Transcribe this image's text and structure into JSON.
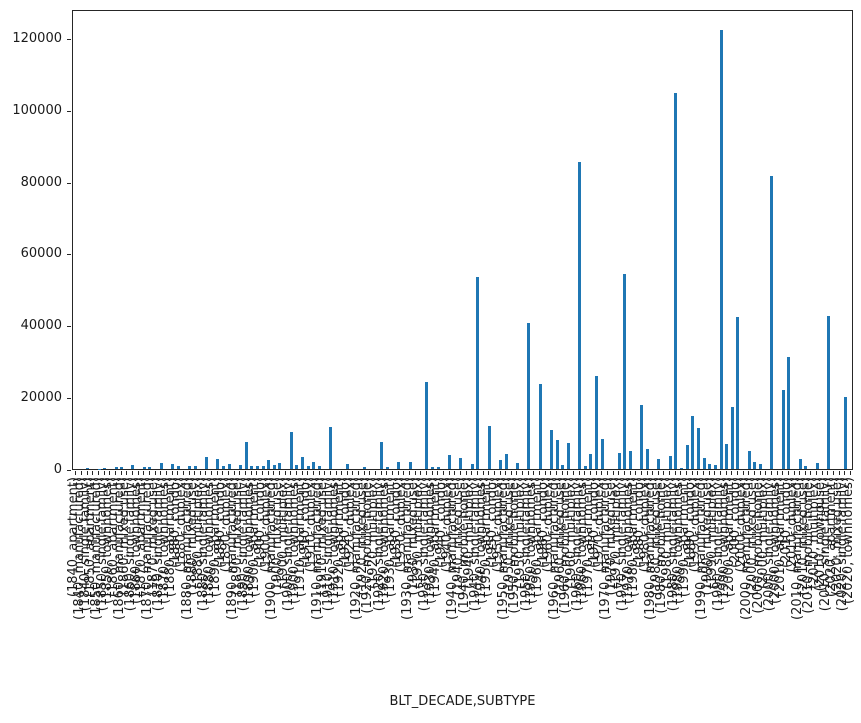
{
  "chart_data": {
    "type": "bar",
    "title": "",
    "xlabel": "BLT_DECADE,SUBTYPE",
    "ylabel": "",
    "ylim": [
      0,
      128000
    ],
    "yticks": [
      0,
      20000,
      40000,
      60000,
      80000,
      100000,
      120000
    ],
    "grid": false,
    "legend": "none",
    "bar_color": "#1f77b4",
    "background_color": "#ffffff",
    "categories": [
      "(1840, apartment)",
      "(1840, manufactured)",
      "(1840, single family)",
      "(1850, apartment)",
      "(1850, manufactured)",
      "(1850, single family)",
      "(1850, townhomes)",
      "(1860, apartment)",
      "(1860, manufactured)",
      "(1860, mixed use)",
      "(1860, single family)",
      "(1860, townhomes)",
      "(1870, apartment)",
      "(1870, manufactured)",
      "(1870, mixed use)",
      "(1870, single family)",
      "(1870, townhomes)",
      "(1880, apartment)",
      "(1880, condo)",
      "(1880, duplex)",
      "(1880, manufactured)",
      "(1880, mixed use)",
      "(1880, multiplex)",
      "(1880, single family)",
      "(1880, townhomes)",
      "(1890, apartment)",
      "(1890, condo)",
      "(1890, duplex)",
      "(1890, manufactured)",
      "(1890, mixed use)",
      "(1890, single family)",
      "(1890, townhomes)",
      "(1900, apartment)",
      "(1900, condo)",
      "(1900, duplex)",
      "(1900, manufactured)",
      "(1900, mixed use)",
      "(1900, multiplex)",
      "(1900, single family)",
      "(1900, townhomes)",
      "(1910, apartment)",
      "(1910, condo)",
      "(1910, duplex)",
      "(1910, manufactured)",
      "(1910, mixed use)",
      "(1910, single family)",
      "(1910, townhomes)",
      "(1920, apartment)",
      "(1920, condo)",
      "(1920, duplex)",
      "(1920, manufactured)",
      "(1920, mixed use)",
      "(1920, mobile home)",
      "(1920, multiplex)",
      "(1920, single family)",
      "(1920, townhomes)",
      "(1930, apartment)",
      "(1930, condo)",
      "(1930, duplex)",
      "(1930, manufactured)",
      "(1930, mixed use)",
      "(1930, multiplex)",
      "(1930, single family)",
      "(1930, townhomes)",
      "(1940, apartment)",
      "(1940, condo)",
      "(1940, duplex)",
      "(1940, manufactured)",
      "(1940, mixed use)",
      "(1940, mobile home)",
      "(1940, multiplex)",
      "(1940, single family)",
      "(1940, townhomes)",
      "(1950, apartment)",
      "(1950, condo)",
      "(1950, duplex)",
      "(1950, manufactured)",
      "(1950, mixed use)",
      "(1950, mobile home)",
      "(1950, multiplex)",
      "(1950, single family)",
      "(1950, townhomes)",
      "(1960, apartment)",
      "(1960, condo)",
      "(1960, duplex)",
      "(1960, manufactured)",
      "(1960, mixed use)",
      "(1960, mobile home)",
      "(1960, multiplex)",
      "(1960, single family)",
      "(1960, townhomes)",
      "(1970, apartment)",
      "(1970, condo)",
      "(1970, duplex)",
      "(1970, manufactured)",
      "(1970, mixed use)",
      "(1970, multiplex)",
      "(1970, single family)",
      "(1970, townhomes)",
      "(1980, apartment)",
      "(1980, condo)",
      "(1980, duplex)",
      "(1980, manufactured)",
      "(1980, mixed use)",
      "(1980, mobile home)",
      "(1980, multiplex)",
      "(1980, single family)",
      "(1980, townhomes)",
      "(1990, apartment)",
      "(1990, condo)",
      "(1990, duplex)",
      "(1990, manufactured)",
      "(1990, mixed use)",
      "(1990, multiplex)",
      "(1990, single family)",
      "(1990, townhomes)",
      "(2000, apartment)",
      "(2000, condo)",
      "(2000, duplex)",
      "(2000, manufactured)",
      "(2000, mixed use)",
      "(2000, mobile home)",
      "(2000, multiplex)",
      "(2000, single family)",
      "(2000, townhomes)",
      "(2010, apartment)",
      "(2010, condo)",
      "(2010, duplex)",
      "(2010, manufactured)",
      "(2010, mixed use)",
      "(2010, mobile home)",
      "(2010, multiplex)",
      "(2010, rowhouse)",
      "(2010, single family)",
      "(2020, apartment)",
      "(2020, mixed use)",
      "(2020, single family)",
      "(2020, townhomes)"
    ],
    "values": [
      0,
      0,
      200,
      0,
      150,
      300,
      0,
      650,
      500,
      0,
      1100,
      0,
      550,
      460,
      0,
      1650,
      0,
      1500,
      750,
      0,
      900,
      750,
      0,
      3250,
      0,
      2800,
      900,
      1300,
      0,
      1100,
      7400,
      900,
      750,
      750,
      2600,
      1100,
      1650,
      0,
      10200,
      1100,
      3250,
      750,
      1850,
      750,
      0,
      11700,
      0,
      0,
      1350,
      0,
      0,
      500,
      0,
      0,
      7600,
      500,
      0,
      2000,
      0,
      1850,
      0,
      0,
      24300,
      600,
      600,
      0,
      3850,
      0,
      3200,
      0,
      1400,
      53400,
      0,
      11900,
      0,
      2600,
      4100,
      0,
      1750,
      0,
      40600,
      0,
      23700,
      0,
      10900,
      8000,
      1000,
      7300,
      0,
      85400,
      800,
      4100,
      26000,
      8400,
      0,
      0,
      4450,
      54400,
      5000,
      0,
      17700,
      5600,
      0,
      2900,
      0,
      3600,
      104700,
      400,
      6750,
      14900,
      11400,
      3000,
      1450,
      1200,
      122300,
      7000,
      17200,
      42200,
      0,
      4900,
      2000,
      1300,
      0,
      81600,
      0,
      21900,
      31100,
      0,
      2900,
      800,
      0,
      1800,
      0,
      42700,
      0,
      0,
      20000,
      0
    ]
  }
}
